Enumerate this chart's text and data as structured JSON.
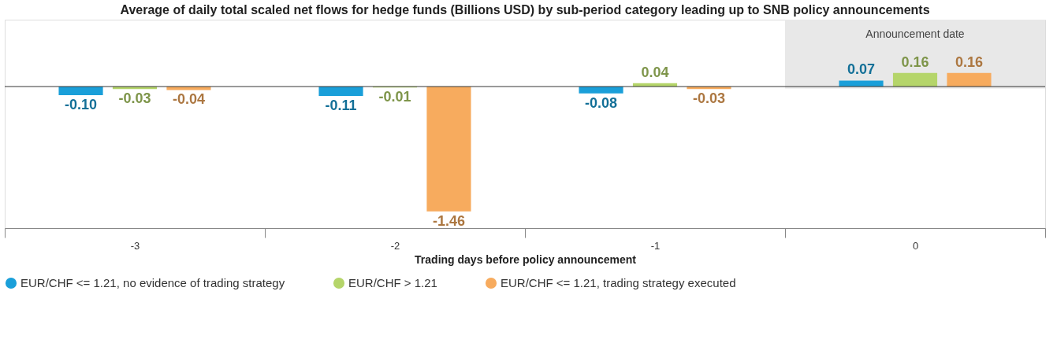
{
  "chart_data": {
    "type": "bar",
    "title": "Average of daily total scaled net flows for hedge funds (Billions USD) by sub-period category leading up to SNB policy announcements",
    "xlabel": "Trading days before policy announcement",
    "categories": [
      "-3",
      "-2",
      "-1",
      "0"
    ],
    "series": [
      {
        "name": "EUR/CHF <= 1.21, no evidence of trading strategy",
        "color": "#1a9fd9",
        "values": [
          -0.1,
          -0.11,
          -0.08,
          0.07
        ],
        "value_labels": [
          "-0.10",
          "-0.11",
          "-0.08",
          "0.07"
        ]
      },
      {
        "name": "EUR/CHF > 1.21",
        "color": "#b5d56a",
        "values": [
          -0.03,
          -0.01,
          0.04,
          0.16
        ],
        "value_labels": [
          "-0.03",
          "-0.01",
          "0.04",
          "0.16"
        ]
      },
      {
        "name": "EUR/CHF <= 1.21, trading strategy executed",
        "color": "#f7ab5e",
        "values": [
          -0.04,
          -1.46,
          -0.03,
          0.16
        ],
        "value_labels": [
          "-0.04",
          "-1.46",
          "-0.03",
          "0.16"
        ]
      }
    ],
    "bands": [
      {
        "axis": "x",
        "from": "0",
        "to": "0",
        "label": "Announcement date",
        "color": "#e8e8e8"
      }
    ],
    "legend": "bottom left"
  }
}
